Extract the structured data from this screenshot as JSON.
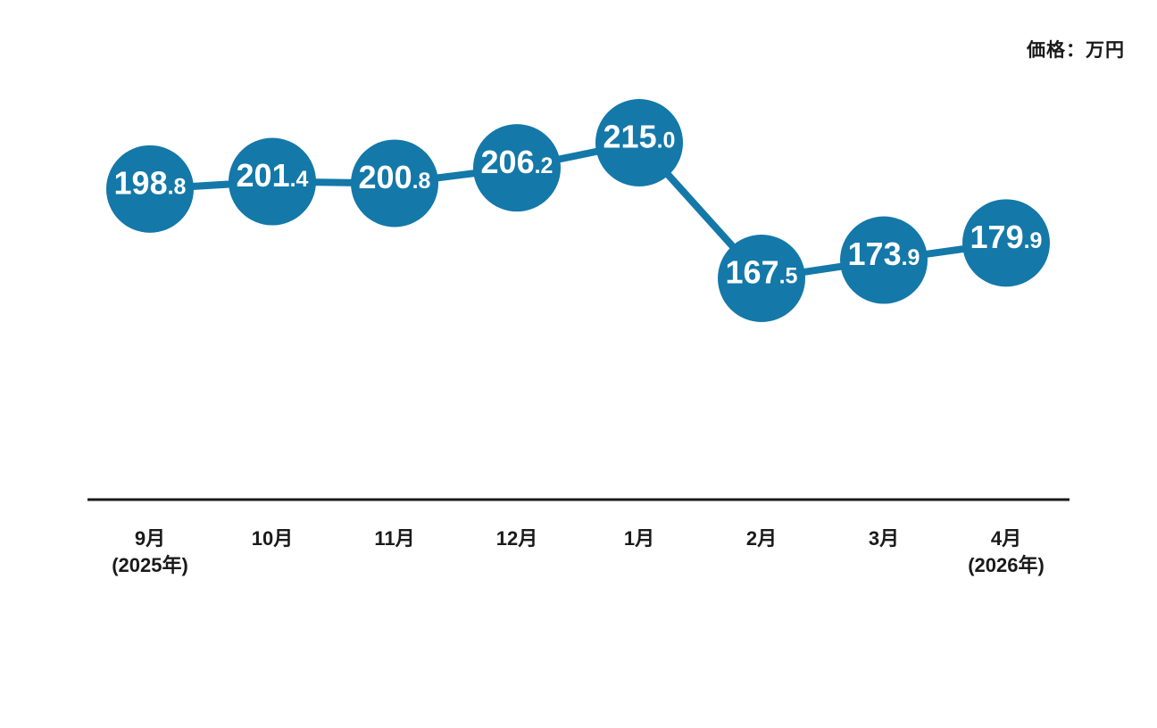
{
  "header": {
    "unit_label": "価格：万円"
  },
  "chart_data": {
    "type": "line",
    "title": "",
    "unit": "価格：万円",
    "categories": [
      "9月",
      "10月",
      "11月",
      "12月",
      "1月",
      "2月",
      "3月",
      "4月"
    ],
    "category_sublabels": [
      "(2025年)",
      "",
      "",
      "",
      "",
      "",
      "",
      "(2026年)"
    ],
    "series": [
      {
        "name": "価格",
        "values": [
          198.8,
          201.4,
          200.8,
          206.2,
          215.0,
          167.5,
          173.9,
          179.9
        ]
      }
    ],
    "value_decimals": 1,
    "legend": "none",
    "grid": false,
    "colors": {
      "point_fill": "#1478A9",
      "line": "#1478A9",
      "value_text": "#FFFFFF",
      "axis_line": "#1A1A1A",
      "label_text": "#1A1A1A"
    }
  }
}
